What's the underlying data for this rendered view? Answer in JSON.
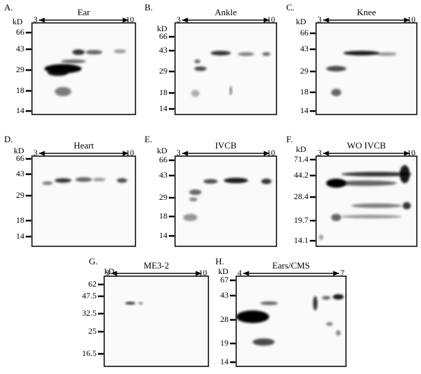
{
  "panels": [
    {
      "letter": "A.",
      "title": "Ear",
      "ph_low": "3",
      "ph_high": "10",
      "kd_label": "kD",
      "markers": [
        "66",
        "43",
        "29",
        "18",
        "14"
      ]
    },
    {
      "letter": "B.",
      "title": "Ankle",
      "ph_low": "3",
      "ph_high": "10",
      "kd_label": "kD",
      "markers": [
        "66",
        "43",
        "29",
        "18",
        "14"
      ]
    },
    {
      "letter": "C.",
      "title": "Knee",
      "ph_low": "3",
      "ph_high": "10",
      "kd_label": "kD",
      "markers": [
        "66",
        "43",
        "29",
        "18",
        "14"
      ]
    },
    {
      "letter": "D.",
      "title": "Heart",
      "ph_low": "3",
      "ph_high": "10",
      "kd_label": "kD",
      "markers": [
        "66",
        "43",
        "29",
        "18",
        "14"
      ]
    },
    {
      "letter": "E.",
      "title": "IVCB",
      "ph_low": "3",
      "ph_high": "10",
      "kd_label": "kD",
      "markers": [
        "66",
        "43",
        "29",
        "18",
        "14"
      ]
    },
    {
      "letter": "F.",
      "title": "WO IVCB",
      "ph_low": "3",
      "ph_high": "10",
      "kd_label": "kD",
      "markers": [
        "71.4",
        "44.2",
        "28.4",
        "19.7",
        "14.1"
      ]
    },
    {
      "letter": "G.",
      "title": "ME3-2",
      "ph_low": "3",
      "ph_high": "10",
      "kd_label": "kD",
      "markers": [
        "62",
        "47.5",
        "32.5",
        "25",
        "16.5"
      ]
    },
    {
      "letter": "H.",
      "title": "Ears/CMS",
      "ph_low": "4",
      "ph_high": "7",
      "kd_label": "kD",
      "markers": [
        "67",
        "43",
        "28",
        "19",
        "14"
      ]
    }
  ]
}
